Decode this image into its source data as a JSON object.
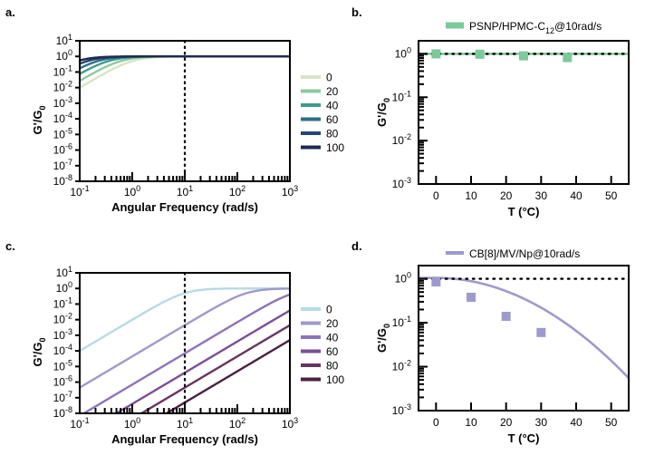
{
  "panels": {
    "a": {
      "letter": "a.",
      "ylabel_main": "G'/G",
      "ylabel_sub": "0",
      "xlabel": "Angular Frequency (rad/s)"
    },
    "b": {
      "letter": "b.",
      "ylabel_main": "G'/G",
      "ylabel_sub": "0",
      "xlabel": "T (°C)",
      "legend_main": "PSNP/HPMC-C",
      "legend_sub": "12",
      "legend_tail": "@10rad/s"
    },
    "c": {
      "letter": "c.",
      "ylabel_main": "G'/G",
      "ylabel_sub": "0",
      "xlabel": "Angular Frequency (rad/s)"
    },
    "d": {
      "letter": "d.",
      "ylabel_main": "G'/G",
      "ylabel_sub": "0",
      "xlabel": "T (°C)",
      "legend_text": "CB[8]/MV/Np@10rad/s"
    }
  },
  "chart_data": [
    {
      "panel": "a",
      "type": "line",
      "xscale": "log",
      "yscale": "log",
      "xlim": [
        0.1,
        1000
      ],
      "ylim": [
        1e-08,
        10
      ],
      "x_tick_exponents": [
        -1,
        0,
        1,
        2,
        3
      ],
      "y_tick_exponents": [
        1,
        0,
        -1,
        -2,
        -3,
        -4,
        -5,
        -6,
        -7,
        -8
      ],
      "vline_x": 10,
      "legend_title": "",
      "series": [
        {
          "name": "0",
          "color": "#d7e3c4",
          "wc": 1.0,
          "slope": 2
        },
        {
          "name": "20",
          "color": "#8cc8a0",
          "wc": 0.6,
          "slope": 2
        },
        {
          "name": "40",
          "color": "#3f9a90",
          "wc": 0.35,
          "slope": 2
        },
        {
          "name": "60",
          "color": "#2f6e8a",
          "wc": 0.22,
          "slope": 2
        },
        {
          "name": "80",
          "color": "#27456f",
          "wc": 0.14,
          "slope": 2
        },
        {
          "name": "100",
          "color": "#1c2b4e",
          "wc": 0.09,
          "slope": 2
        }
      ]
    },
    {
      "panel": "b",
      "type": "scatter",
      "xscale": "linear",
      "yscale": "log",
      "xlim": [
        -5,
        55
      ],
      "ylim": [
        0.001,
        2
      ],
      "x_ticks": [
        0,
        10,
        20,
        30,
        40,
        50
      ],
      "y_tick_exponents": [
        0,
        -1,
        -2,
        -3
      ],
      "hline_y": 1,
      "series": [
        {
          "name": "PSNP/HPMC-C12@10rad/s",
          "color": "#7cc99a",
          "x": [
            0,
            12.5,
            25,
            37.5
          ],
          "y": [
            1.0,
            0.98,
            0.9,
            0.82
          ],
          "fit": {
            "type": "constant",
            "value": 1
          }
        }
      ]
    },
    {
      "panel": "c",
      "type": "line",
      "xscale": "log",
      "yscale": "log",
      "xlim": [
        0.1,
        1000
      ],
      "ylim": [
        1e-08,
        10
      ],
      "x_tick_exponents": [
        -1,
        0,
        1,
        2,
        3
      ],
      "y_tick_exponents": [
        1,
        0,
        -1,
        -2,
        -3,
        -4,
        -5,
        -6,
        -7,
        -8
      ],
      "vline_x": 10,
      "series": [
        {
          "name": "0",
          "color": "#b7dbe5",
          "wc": 10,
          "slope": 2
        },
        {
          "name": "20",
          "color": "#9d9acd",
          "wc": 150,
          "slope": 2
        },
        {
          "name": "40",
          "color": "#8d74b8",
          "wc": 1200,
          "slope": 2
        },
        {
          "name": "60",
          "color": "#7a4f95",
          "wc": 5000,
          "slope": 2
        },
        {
          "name": "80",
          "color": "#66365f",
          "wc": 15000,
          "slope": 2
        },
        {
          "name": "100",
          "color": "#4a2140",
          "wc": 45000,
          "slope": 2
        }
      ]
    },
    {
      "panel": "d",
      "type": "scatter",
      "xscale": "linear",
      "yscale": "log",
      "xlim": [
        -5,
        55
      ],
      "ylim": [
        0.001,
        2
      ],
      "x_ticks": [
        0,
        10,
        20,
        30,
        40,
        50
      ],
      "y_tick_exponents": [
        0,
        -1,
        -2,
        -3
      ],
      "hline_y": 1,
      "series": [
        {
          "name": "CB[8]/MV/Np@10rad/s",
          "color": "#9d9acd",
          "x": [
            0,
            10,
            20,
            30
          ],
          "y": [
            0.85,
            0.38,
            0.14,
            0.06
          ],
          "fit": {
            "type": "gaussian_decay",
            "y0": 1.05,
            "scale": 24
          }
        }
      ]
    }
  ]
}
